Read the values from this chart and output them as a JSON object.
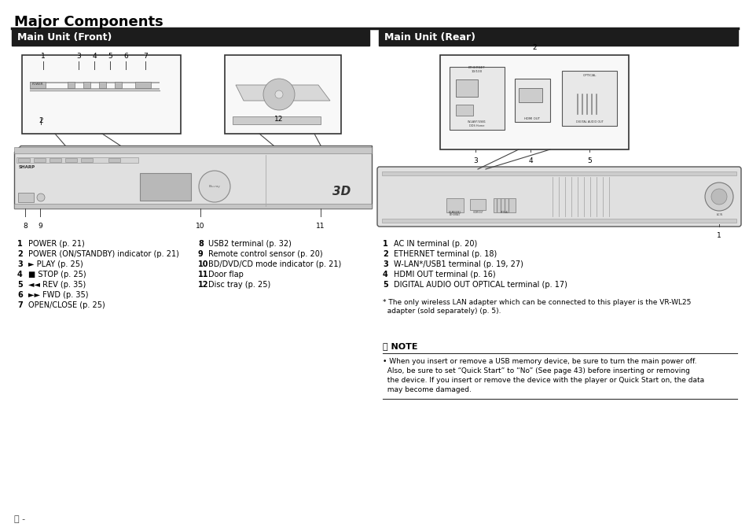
{
  "title": "Major Components",
  "section_front": "Main Unit (Front)",
  "section_rear": "Main Unit (Rear)",
  "bg_color": "#ffffff",
  "header_bg": "#1c1c1c",
  "header_text_color": "#ffffff",
  "title_color": "#000000",
  "divider_color": "#1c1c1c",
  "front_items_col1": [
    [
      "1",
      "POWER (p. 21)"
    ],
    [
      "2",
      "POWER (ON/STANDBY) indicator (p. 21)"
    ],
    [
      "3",
      "► PLAY (p. 25)"
    ],
    [
      "4",
      "■ STOP (p. 25)"
    ],
    [
      "5",
      "◄◄ REV (p. 35)"
    ],
    [
      "6",
      "►► FWD (p. 35)"
    ],
    [
      "7",
      "OPEN/CLOSE (p. 25)"
    ]
  ],
  "front_items_col2": [
    [
      "8",
      "USB2 terminal (p. 32)"
    ],
    [
      "9",
      "Remote control sensor (p. 20)"
    ],
    [
      "10",
      "BD/DVD/CD mode indicator (p. 21)"
    ],
    [
      "11",
      "Door flap"
    ],
    [
      "12",
      "Disc tray (p. 25)"
    ]
  ],
  "rear_items": [
    [
      "1",
      "AC IN terminal (p. 20)"
    ],
    [
      "2",
      "ETHERNET terminal (p. 18)"
    ],
    [
      "3",
      "W-LAN*/USB1 terminal (p. 19, 27)"
    ],
    [
      "4",
      "HDMI OUT terminal (p. 16)"
    ],
    [
      "5",
      "DIGITAL AUDIO OUT OPTICAL terminal (p. 17)"
    ]
  ],
  "footnote_star": "* The only wireless LAN adapter which can be connected to this player is the VR-WL25",
  "footnote_cont": "  adapter (sold separately) (p. 5).",
  "note_title": "NOTE",
  "note_bullet": "• When you insert or remove a USB memory device, be sure to turn the main power off.",
  "note_line2": "  Also, be sure to set “Quick Start” to “No” (See page 43) before inserting or removing",
  "note_line3": "  the device. If you insert or remove the device with the player or Quick Start on, the data",
  "note_line4": "  may become damaged.",
  "page_num": "ⓔ -"
}
